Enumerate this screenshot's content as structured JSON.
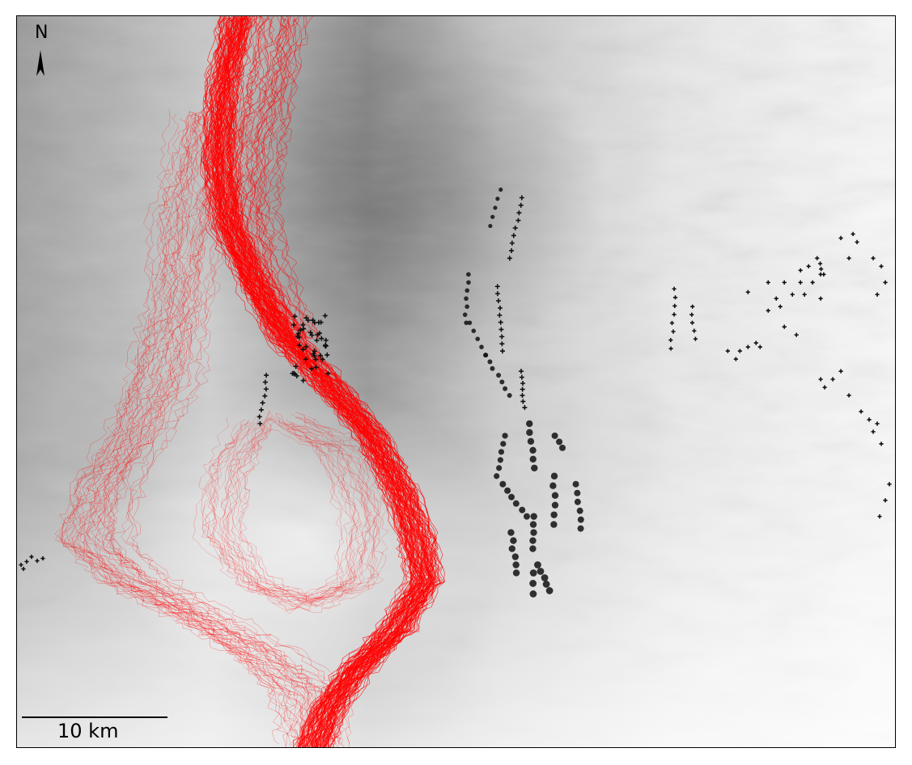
{
  "map": {
    "north_label": "N",
    "scale_label": "10 km",
    "colors": {
      "terrain_dark": "#5a5a5a",
      "terrain_light": "#ffffff",
      "paths": "#ff0000",
      "markers": "#111111"
    },
    "layers": [
      "grayscale-elevation-background",
      "red-simulated-paths",
      "black-circle-markers",
      "black-plus-markers"
    ]
  }
}
